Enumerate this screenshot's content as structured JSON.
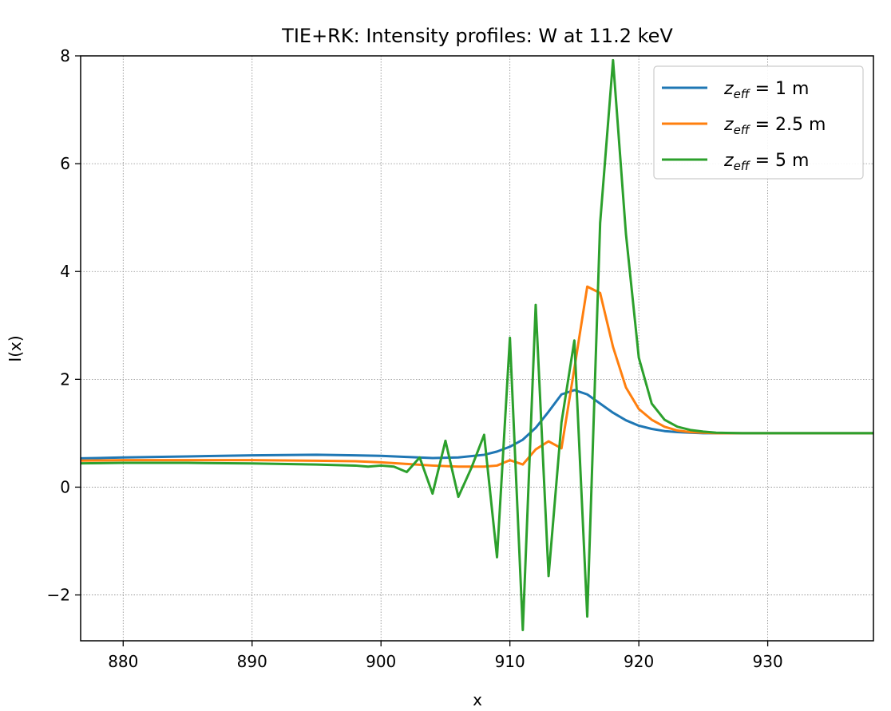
{
  "chart_data": {
    "type": "line",
    "title": "TIE+RK: Intensity profiles: W at 11.2 keV",
    "xlabel": "x",
    "ylabel": "I(x)",
    "xlim": [
      876.7,
      938.2
    ],
    "ylim": [
      -2.85,
      8.0
    ],
    "xticks": [
      880,
      890,
      900,
      910,
      920,
      930
    ],
    "yticks": [
      -2,
      0,
      2,
      4,
      6,
      8
    ],
    "xtick_labels": [
      "880",
      "890",
      "900",
      "910",
      "920",
      "930"
    ],
    "ytick_labels": [
      "−2",
      "0",
      "2",
      "4",
      "6",
      "8"
    ],
    "grid": true,
    "legend_position": "top-right",
    "series": [
      {
        "name": "z_eff = 1 m",
        "legend_main": "z",
        "legend_sub": "eff",
        "legend_rest": " = 1 m",
        "color": "#1f77b4",
        "x": [
          876,
          880,
          885,
          890,
          895,
          898,
          900,
          902,
          904,
          906,
          908,
          909,
          910,
          911,
          912,
          913,
          914,
          915,
          916,
          917,
          918,
          919,
          920,
          921,
          922,
          923,
          924,
          925,
          926,
          928,
          930,
          935,
          939
        ],
        "y": [
          0.53,
          0.55,
          0.57,
          0.59,
          0.6,
          0.59,
          0.58,
          0.56,
          0.54,
          0.55,
          0.6,
          0.66,
          0.75,
          0.88,
          1.1,
          1.4,
          1.72,
          1.8,
          1.72,
          1.55,
          1.38,
          1.24,
          1.14,
          1.08,
          1.04,
          1.02,
          1.01,
          1.0,
          1.0,
          1.0,
          1.0,
          1.0,
          1.0
        ]
      },
      {
        "name": "z_eff = 2.5 m",
        "legend_main": "z",
        "legend_sub": "eff",
        "legend_rest": " = 2.5 m",
        "color": "#ff7f0e",
        "x": [
          876,
          880,
          885,
          890,
          895,
          898,
          900,
          902,
          904,
          906,
          908,
          909,
          910,
          911,
          912,
          913,
          914,
          915,
          916,
          917,
          918,
          919,
          920,
          921,
          922,
          923,
          924,
          925,
          926,
          928,
          930,
          935,
          939
        ],
        "y": [
          0.49,
          0.5,
          0.5,
          0.5,
          0.49,
          0.48,
          0.46,
          0.43,
          0.4,
          0.38,
          0.38,
          0.4,
          0.5,
          0.42,
          0.7,
          0.85,
          0.72,
          2.2,
          3.72,
          3.6,
          2.6,
          1.85,
          1.45,
          1.25,
          1.12,
          1.05,
          1.02,
          1.01,
          1.0,
          1.0,
          1.0,
          1.0,
          1.0
        ]
      },
      {
        "name": "z_eff = 5 m",
        "legend_main": "z",
        "legend_sub": "eff",
        "legend_rest": " = 5 m",
        "color": "#2ca02c",
        "x": [
          876,
          880,
          885,
          890,
          895,
          898,
          899,
          900,
          901,
          902,
          903,
          904,
          905,
          906,
          907,
          908,
          909,
          910,
          911,
          912,
          913,
          914,
          915,
          916,
          917,
          918,
          919,
          920,
          921,
          922,
          923,
          924,
          925,
          926,
          928,
          930,
          935,
          939
        ],
        "y": [
          0.44,
          0.45,
          0.45,
          0.44,
          0.42,
          0.4,
          0.38,
          0.4,
          0.38,
          0.28,
          0.55,
          -0.12,
          0.86,
          -0.18,
          0.35,
          0.97,
          -1.3,
          2.77,
          -2.65,
          3.38,
          -1.65,
          1.2,
          2.72,
          -2.4,
          4.9,
          7.92,
          4.7,
          2.4,
          1.55,
          1.25,
          1.12,
          1.06,
          1.03,
          1.01,
          1.0,
          1.0,
          1.0,
          1.0
        ]
      }
    ]
  }
}
